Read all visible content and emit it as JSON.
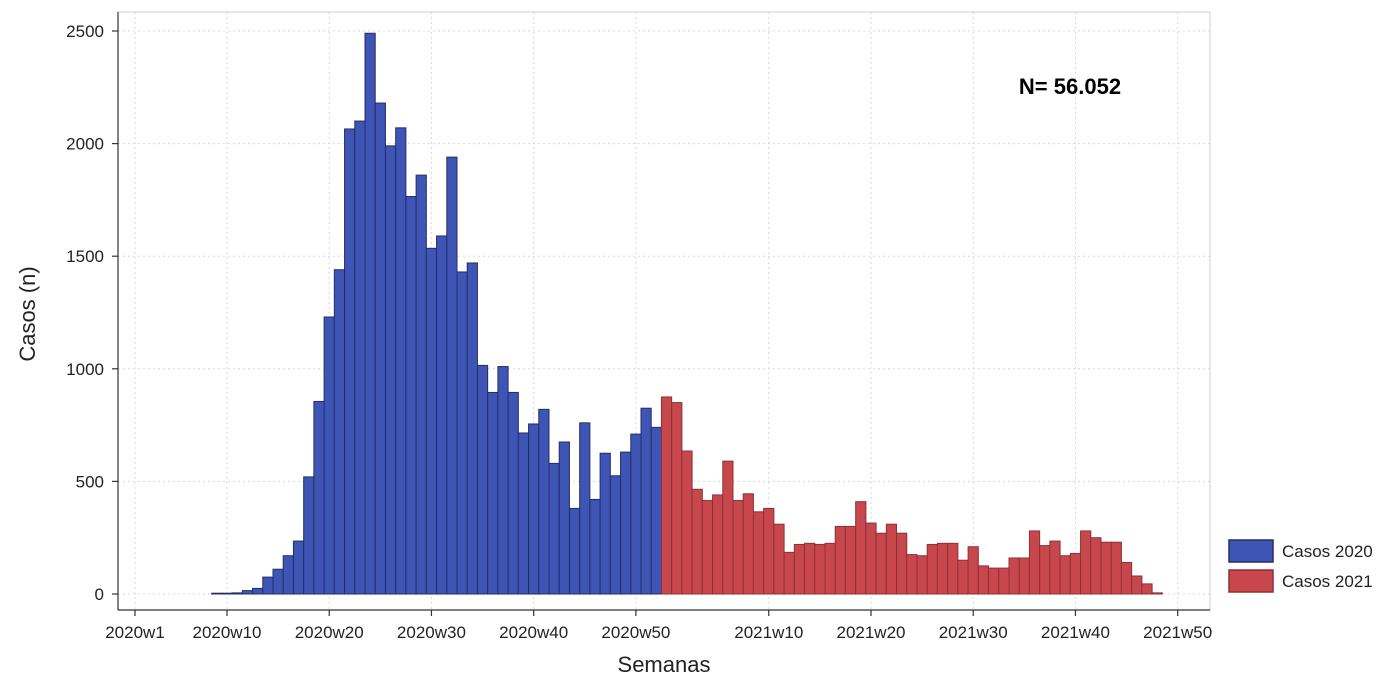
{
  "chart_data": {
    "type": "bar",
    "xlabel": "Semanas",
    "ylabel": "Casos (n)",
    "ylim": [
      0,
      2500
    ],
    "yticks": [
      0,
      500,
      1000,
      1500,
      2000,
      2500
    ],
    "xticks": [
      "2020w1",
      "2020w10",
      "2020w20",
      "2020w30",
      "2020w40",
      "2020w50",
      "2021w10",
      "2021w20",
      "2021w30",
      "2021w40",
      "2021w50"
    ],
    "grid": true,
    "legend_position": "bottom-right",
    "annotation": "N= 56.052",
    "series": [
      {
        "name": "Casos 2020",
        "color": "#3f55b5",
        "start_week": "2020w9",
        "weeks": [
          "2020w9",
          "2020w10",
          "2020w11",
          "2020w12",
          "2020w13",
          "2020w14",
          "2020w15",
          "2020w16",
          "2020w17",
          "2020w18",
          "2020w19",
          "2020w20",
          "2020w21",
          "2020w22",
          "2020w23",
          "2020w24",
          "2020w25",
          "2020w26",
          "2020w27",
          "2020w28",
          "2020w29",
          "2020w30",
          "2020w31",
          "2020w32",
          "2020w33",
          "2020w34",
          "2020w35",
          "2020w36",
          "2020w37",
          "2020w38",
          "2020w39",
          "2020w40",
          "2020w41",
          "2020w42",
          "2020w43",
          "2020w44",
          "2020w45",
          "2020w46",
          "2020w47",
          "2020w48",
          "2020w49",
          "2020w50",
          "2020w51",
          "2020w52"
        ],
        "values": [
          2,
          3,
          5,
          15,
          25,
          75,
          110,
          170,
          235,
          520,
          855,
          1230,
          1440,
          2065,
          2100,
          2490,
          2180,
          1990,
          2070,
          1765,
          1860,
          1535,
          1590,
          1940,
          1430,
          1470,
          1015,
          895,
          1010,
          895,
          715,
          755,
          820,
          580,
          675,
          380,
          760,
          420,
          625,
          525,
          630,
          710,
          825,
          740
        ]
      },
      {
        "name": "Casos 2021",
        "color": "#c8474d",
        "start_week": "2020w53",
        "weeks": [
          "2020w53",
          "2021w1",
          "2021w2",
          "2021w3",
          "2021w4",
          "2021w5",
          "2021w6",
          "2021w7",
          "2021w8",
          "2021w9",
          "2021w10",
          "2021w11",
          "2021w12",
          "2021w13",
          "2021w14",
          "2021w15",
          "2021w16",
          "2021w17",
          "2021w18",
          "2021w19",
          "2021w20",
          "2021w21",
          "2021w22",
          "2021w23",
          "2021w24",
          "2021w25",
          "2021w26",
          "2021w27",
          "2021w28",
          "2021w29",
          "2021w30",
          "2021w31",
          "2021w32",
          "2021w33",
          "2021w34",
          "2021w35",
          "2021w36",
          "2021w37",
          "2021w38",
          "2021w39",
          "2021w40",
          "2021w41",
          "2021w42",
          "2021w43",
          "2021w44",
          "2021w45",
          "2021w46",
          "2021w47",
          "2021w48"
        ],
        "values": [
          875,
          850,
          635,
          465,
          415,
          440,
          590,
          415,
          445,
          365,
          380,
          310,
          185,
          220,
          225,
          220,
          225,
          300,
          300,
          410,
          315,
          270,
          310,
          270,
          175,
          170,
          220,
          225,
          225,
          150,
          210,
          125,
          115,
          115,
          160,
          160,
          280,
          215,
          235,
          170,
          180,
          280,
          250,
          230,
          230,
          140,
          80,
          45,
          5
        ]
      }
    ]
  }
}
